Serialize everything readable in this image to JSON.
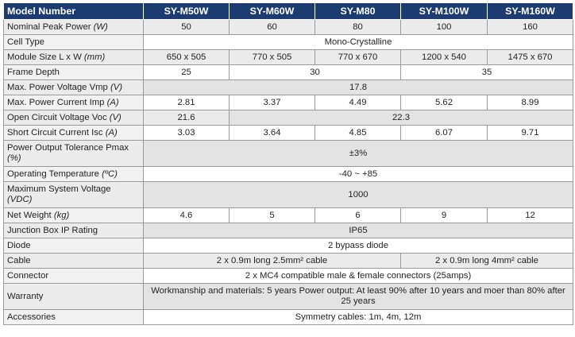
{
  "header": {
    "label": "Model Number",
    "models": [
      "SY-M50W",
      "SY-M60W",
      "SY-M80",
      "SY-M100W",
      "SY-M160W"
    ]
  },
  "rows": {
    "power": {
      "label": "Nominal Peak Power",
      "unit": "(W)",
      "values": [
        "50",
        "60",
        "80",
        "100",
        "160"
      ]
    },
    "cell": {
      "label": "Cell Type",
      "value": "Mono-Crystalline"
    },
    "size": {
      "label": "Module Size L x W",
      "unit": "(mm)",
      "values": [
        "650 x 505",
        "770 x 505",
        "770 x 670",
        "1200 x 540",
        "1475 x 670"
      ]
    },
    "frame": {
      "label": "Frame Depth",
      "values": [
        "25",
        "30",
        "35"
      ]
    },
    "vmp": {
      "label": "Max. Power Voltage Vmp",
      "unit": "(V)",
      "value": "17.8"
    },
    "imp": {
      "label": "Max. Power Current Imp",
      "unit": "(A)",
      "values": [
        "2.81",
        "3.37",
        "4.49",
        "5.62",
        "8.99"
      ]
    },
    "voc": {
      "label": "Open Circuit Voltage Voc",
      "unit": "(V)",
      "values": [
        "21.6",
        "22.3"
      ]
    },
    "isc": {
      "label": "Short Circuit Current Isc",
      "unit": "(A)",
      "values": [
        "3.03",
        "3.64",
        "4.85",
        "6.07",
        "9.71"
      ]
    },
    "tolerance": {
      "label": "Power Output Tolerance Pmax",
      "unit": "(%)",
      "value": "±3%"
    },
    "temp": {
      "label": "Operating Temperature",
      "unit": "(ºC)",
      "value": "-40 ~ +85"
    },
    "sysvolt": {
      "label": "Maximum System Voltage",
      "unit": "(VDC)",
      "value": "1000"
    },
    "weight": {
      "label": "Net Weight",
      "unit": "(kg)",
      "values": [
        "4.6",
        "5",
        "6",
        "9",
        "12"
      ]
    },
    "ip": {
      "label": "Junction Box IP Rating",
      "value": "IP65"
    },
    "diode": {
      "label": "Diode",
      "value": "2 bypass diode"
    },
    "cable": {
      "label": "Cable",
      "values": [
        "2 x 0.9m long 2.5mm² cable",
        "2 x 0.9m long 4mm² cable"
      ]
    },
    "connector": {
      "label": "Connector",
      "value": "2 x MC4 compatible male & female connectors (25amps)"
    },
    "warranty": {
      "label": "Warranty",
      "value": "Workmanship and materials: 5 years Power output: At least 90% after 10 years and moer than 80% after 25 years"
    },
    "accessories": {
      "label": "Accessories",
      "value": "Symmetry cables: 1m, 4m, 12m"
    }
  }
}
